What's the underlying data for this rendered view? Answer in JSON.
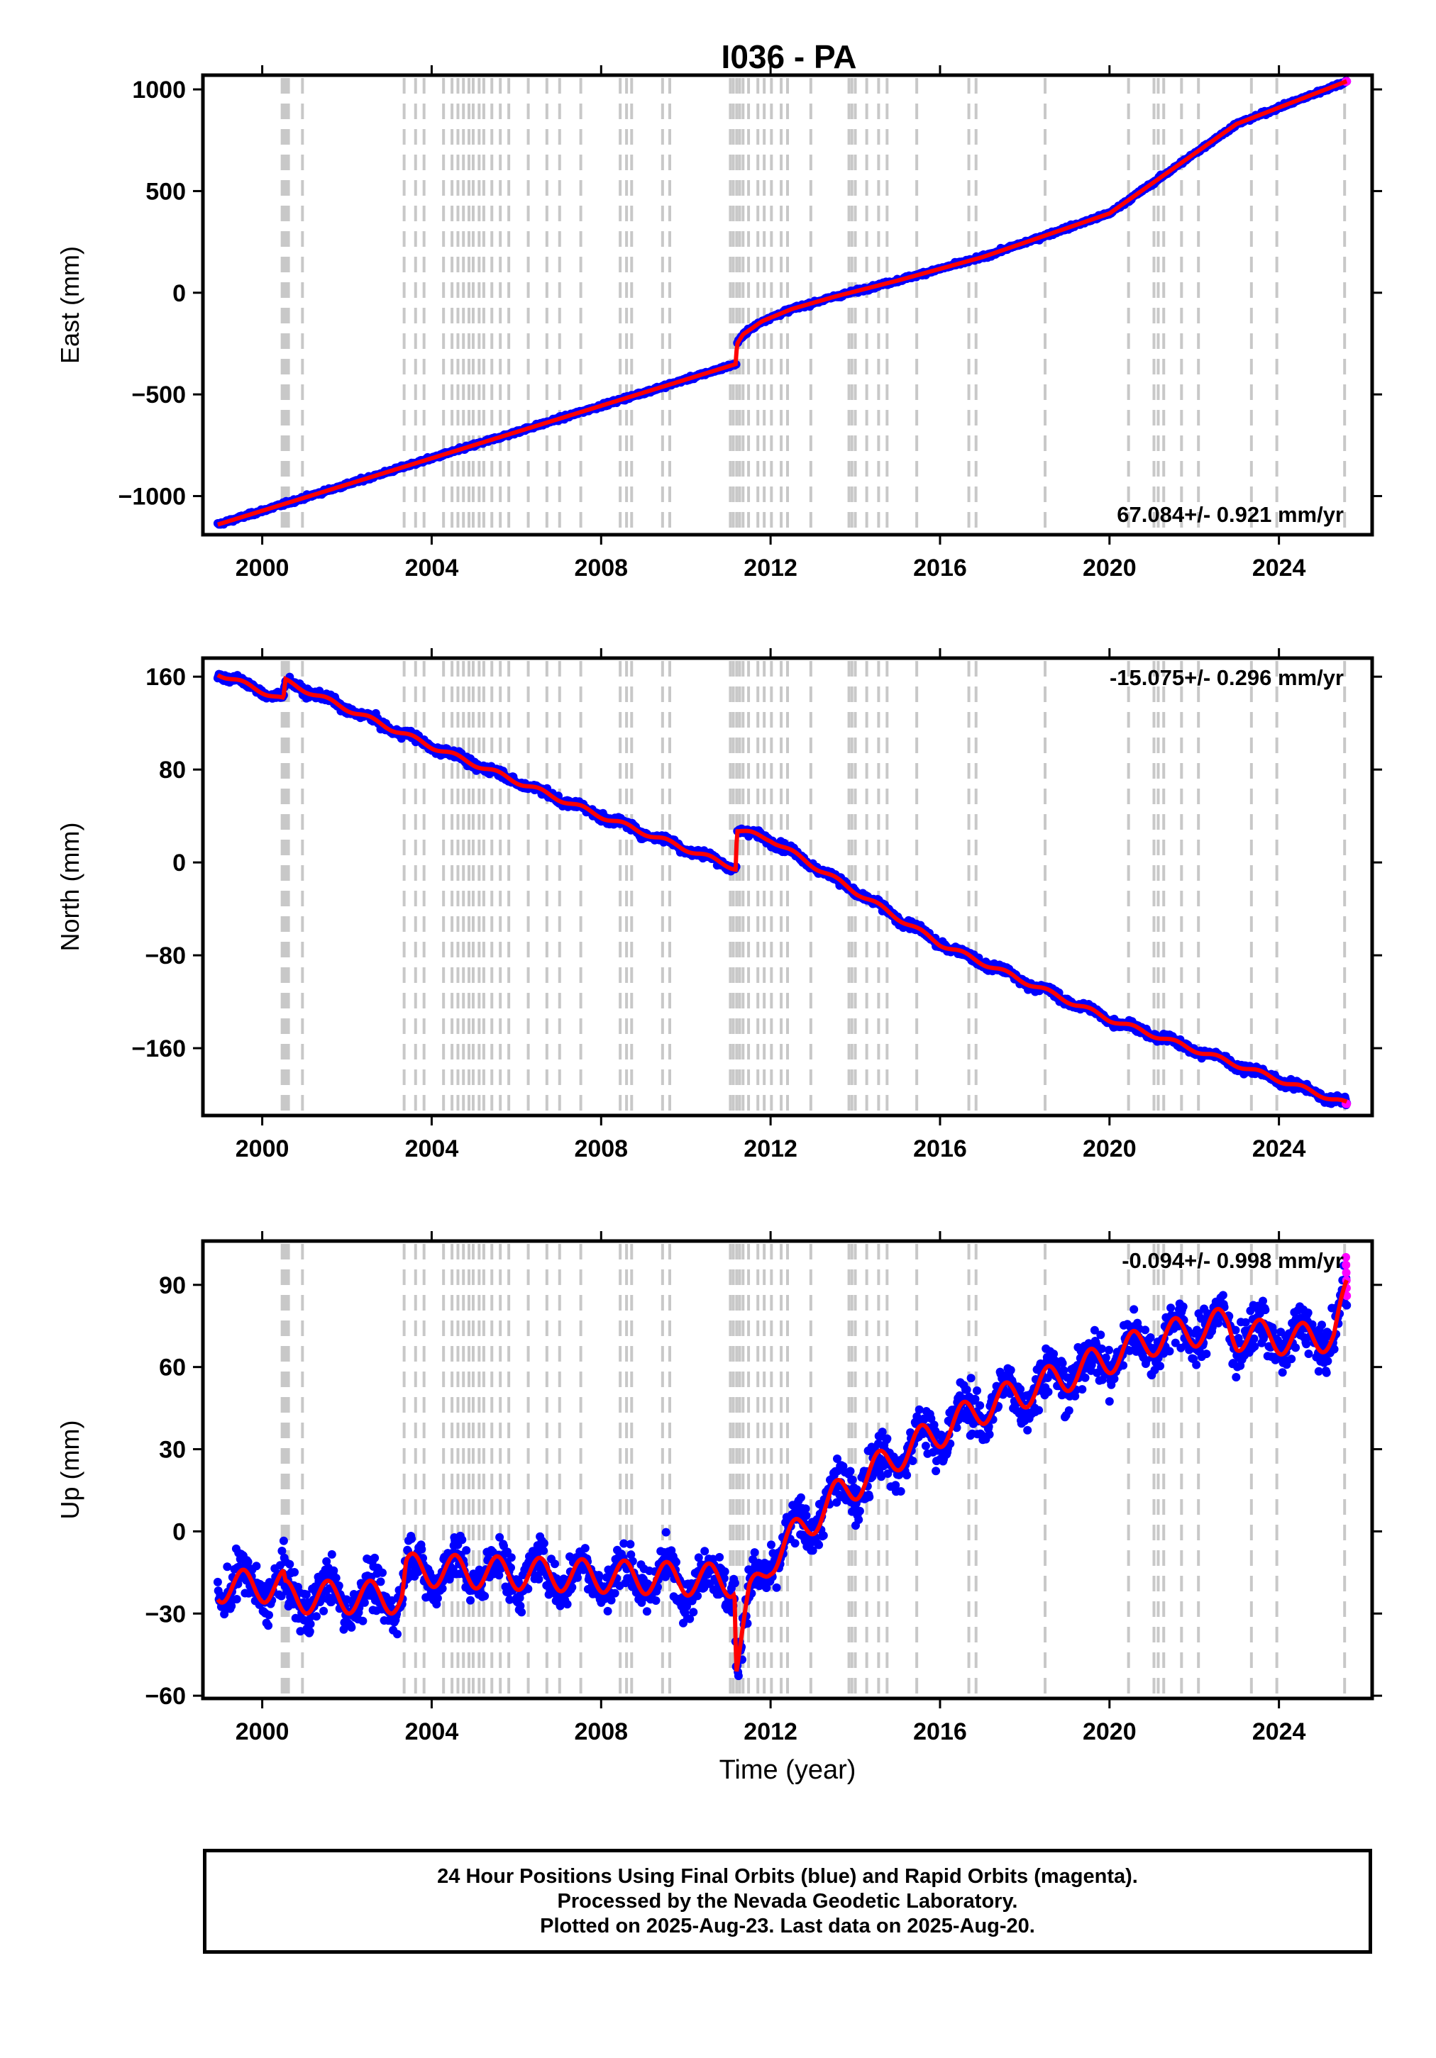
{
  "title": "I036 - PA",
  "footer": {
    "line1": "24 Hour Positions Using Final Orbits (blue) and Rapid Orbits (magenta).",
    "line2": "Processed by the Nevada Geodetic Laboratory.",
    "line3": "Plotted on 2025-Aug-23. Last data on 2025-Aug-20."
  },
  "colors": {
    "final": "#0000ff",
    "rapid": "#ff00ff",
    "model": "#ff0000",
    "events": "#c8c8c8"
  },
  "chart_data": [
    {
      "type": "scatter",
      "ylabel": "East (mm)",
      "rate_label": "67.084+/- 0.921 mm/yr",
      "rate_position": "bottom-right",
      "xlim": [
        1998.6,
        2026.2
      ],
      "ylim": [
        -1190,
        1070
      ],
      "yticks": [
        1000,
        500,
        0,
        -500,
        -1000
      ],
      "ytick_labels": [
        "1000",
        "500",
        "0",
        "−500",
        "−1000"
      ],
      "xticks": [
        2000,
        2004,
        2008,
        2012,
        2016,
        2020,
        2024
      ],
      "xtick_labels": [
        "2000",
        "2004",
        "2008",
        "2012",
        "2016",
        "2020",
        "2024"
      ],
      "trend_knots": [
        [
          1998.95,
          -1140
        ],
        [
          2011.19,
          -350
        ],
        [
          2011.2,
          -255
        ],
        [
          2011.35,
          -205
        ],
        [
          2011.8,
          -140
        ],
        [
          2012.5,
          -80
        ],
        [
          2013.5,
          -20
        ],
        [
          2015.0,
          60
        ],
        [
          2017.0,
          175
        ],
        [
          2020.0,
          390
        ],
        [
          2023.0,
          830
        ],
        [
          2025.6,
          1040
        ]
      ],
      "noise_mm": 6,
      "seasonal_mm": 0
    },
    {
      "type": "scatter",
      "ylabel": "North (mm)",
      "rate_label": "-15.075+/- 0.296 mm/yr",
      "rate_position": "top-right",
      "xlim": [
        1998.6,
        2026.2
      ],
      "ylim": [
        -218,
        176
      ],
      "yticks": [
        160,
        80,
        0,
        -80,
        -160
      ],
      "ytick_labels": [
        "160",
        "80",
        "0",
        "−80",
        "−160"
      ],
      "xticks": [
        2000,
        2004,
        2008,
        2012,
        2016,
        2020,
        2024
      ],
      "xtick_labels": [
        "2000",
        "2004",
        "2008",
        "2012",
        "2016",
        "2020",
        "2024"
      ],
      "trend_knots": [
        [
          1998.95,
          163
        ],
        [
          2000.5,
          140
        ],
        [
          2000.55,
          156
        ],
        [
          2004,
          100
        ],
        [
          2008,
          40
        ],
        [
          2011.19,
          -5
        ],
        [
          2011.2,
          28
        ],
        [
          2012,
          20
        ],
        [
          2016,
          -70
        ],
        [
          2020,
          -135
        ],
        [
          2025.6,
          -208
        ]
      ],
      "noise_mm": 2.5,
      "seasonal_mm": 2
    },
    {
      "type": "scatter",
      "ylabel": "Up (mm)",
      "rate_label": "-0.094+/- 0.998 mm/yr",
      "rate_position": "top-right",
      "xlim": [
        1998.6,
        2026.2
      ],
      "ylim": [
        -61,
        106
      ],
      "yticks": [
        90,
        60,
        30,
        0,
        -30,
        -60
      ],
      "ytick_labels": [
        "90",
        "60",
        "30",
        "0",
        "−30",
        "−60"
      ],
      "xticks": [
        2000,
        2004,
        2008,
        2012,
        2016,
        2020,
        2024
      ],
      "xtick_labels": [
        "2000",
        "2004",
        "2008",
        "2012",
        "2016",
        "2020",
        "2024"
      ],
      "xlabel": "Time (year)",
      "trend_knots": [
        [
          1998.95,
          -20
        ],
        [
          2000.5,
          -20
        ],
        [
          2000.55,
          -24
        ],
        [
          2003.3,
          -24
        ],
        [
          2003.4,
          -14
        ],
        [
          2011.15,
          -18
        ],
        [
          2011.19,
          -48
        ],
        [
          2011.5,
          -25
        ],
        [
          2012.0,
          -10
        ],
        [
          2013.5,
          12
        ],
        [
          2015.0,
          28
        ],
        [
          2017.0,
          45
        ],
        [
          2019.0,
          57
        ],
        [
          2021.0,
          70
        ],
        [
          2022.8,
          76
        ],
        [
          2023.0,
          72
        ],
        [
          2024.5,
          70
        ],
        [
          2025.3,
          72
        ],
        [
          2025.6,
          86
        ]
      ],
      "noise_mm": 6,
      "seasonal_mm": 6
    }
  ],
  "event_epochs": [
    2000.47,
    2000.52,
    2000.57,
    2000.62,
    2000.95,
    2003.35,
    2003.62,
    2003.82,
    2004.28,
    2004.48,
    2004.62,
    2004.75,
    2004.88,
    2004.98,
    2005.12,
    2005.23,
    2005.42,
    2005.62,
    2005.82,
    2006.28,
    2006.72,
    2007.02,
    2007.52,
    2008.45,
    2008.6,
    2008.72,
    2009.45,
    2009.62,
    2011.05,
    2011.12,
    2011.2,
    2011.27,
    2011.35,
    2011.48,
    2011.7,
    2011.85,
    2012.02,
    2012.25,
    2012.4,
    2012.95,
    2013.85,
    2013.92,
    2014.0,
    2014.27,
    2014.55,
    2014.75,
    2015.45,
    2016.68,
    2016.85,
    2018.48,
    2020.45,
    2021.05,
    2021.15,
    2021.28,
    2021.7,
    2022.1,
    2023.35,
    2023.95,
    2025.55
  ]
}
